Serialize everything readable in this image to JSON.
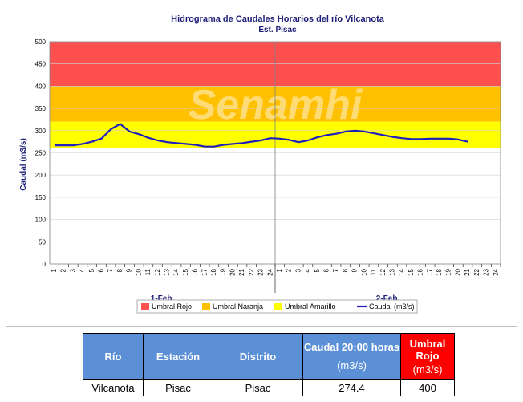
{
  "chart_data": {
    "type": "line",
    "title": "Hidrograma de Caudales Horarios del río Vilcanota",
    "subtitle": "Est. Pisac",
    "ylabel": "Caudal  (m3/s)",
    "ylim": [
      0,
      500
    ],
    "yticks": [
      0,
      50,
      100,
      150,
      200,
      250,
      300,
      350,
      400,
      450,
      500
    ],
    "x_tick_labels": [
      "1",
      "2",
      "3",
      "4",
      "5",
      "6",
      "7",
      "8",
      "9",
      "10",
      "11",
      "12",
      "13",
      "14",
      "15",
      "16",
      "17",
      "18",
      "19",
      "20",
      "21",
      "22",
      "23",
      "24",
      "1",
      "2",
      "3",
      "4",
      "5",
      "6",
      "7",
      "8",
      "9",
      "10",
      "11",
      "12",
      "13",
      "14",
      "15",
      "16",
      "17",
      "18",
      "19",
      "20",
      "21",
      "22",
      "23",
      "24"
    ],
    "day_labels": [
      "1-Feb.",
      "2-Feb."
    ],
    "bands": [
      {
        "name": "Umbral Rojo",
        "from": 400,
        "to": 500,
        "color": "#ff5050"
      },
      {
        "name": "Umbral Naranja",
        "from": 320,
        "to": 400,
        "color": "#ffc000"
      },
      {
        "name": "Umbral Amarillo",
        "from": 260,
        "to": 320,
        "color": "#ffff00"
      }
    ],
    "series": [
      {
        "name": "Caudal (m3/s)",
        "color": "#1f1fbf",
        "values": [
          267,
          267,
          267,
          270,
          275,
          282,
          303,
          315,
          298,
          292,
          284,
          278,
          274,
          272,
          270,
          268,
          264,
          264,
          268,
          270,
          272,
          275,
          278,
          283,
          282,
          279,
          274,
          278,
          285,
          290,
          293,
          298,
          300,
          298,
          294,
          290,
          286,
          283,
          281,
          281,
          282,
          282,
          282,
          280,
          275
        ]
      }
    ],
    "grid": true,
    "legend_position": "bottom"
  },
  "watermark": "Senamhi",
  "table": {
    "headers": {
      "rio": "Río",
      "estacion": "Estación",
      "distrito": "Distrito",
      "caudal_main": "Caudal 20:00 horas",
      "caudal_unit": "(m3/s)",
      "umbral_main": "Umbral Rojo",
      "umbral_unit": "(m3/s)"
    },
    "row": {
      "rio": "Vilcanota",
      "estacion": "Pisac",
      "distrito": "Pisac",
      "caudal": "274.4",
      "umbral": "400"
    }
  }
}
